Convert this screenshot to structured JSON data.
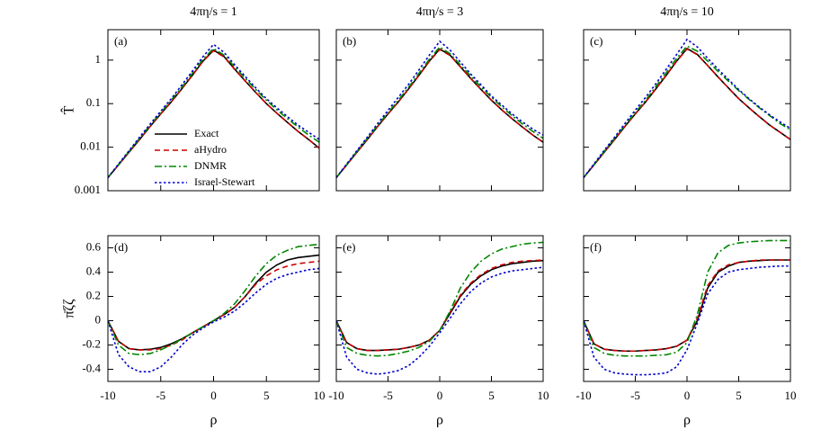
{
  "chart_data": [
    {
      "type": "line",
      "title": "4πη/s = 1",
      "panel_label": "(a)",
      "ylabel": "T̂",
      "log_y": true,
      "legend": "center-left",
      "show_xtick_labels": false,
      "show_ytick_labels": true,
      "x": [
        -10,
        -9,
        -8,
        -7,
        -6,
        -5,
        -4,
        -3,
        -2,
        -1,
        0,
        1,
        2,
        3,
        4,
        5,
        6,
        7,
        8,
        9,
        10
      ],
      "xlim": [
        -10,
        10
      ],
      "xticks": [
        -10,
        -5,
        0,
        5,
        10
      ],
      "ylim": [
        0.001,
        5
      ],
      "yticks": [
        0.001,
        0.01,
        0.1,
        1
      ],
      "series": [
        {
          "name": "Exact",
          "color": "#000000",
          "dash": "solid",
          "values": [
            0.002,
            0.0039,
            0.0077,
            0.015,
            0.03,
            0.058,
            0.11,
            0.22,
            0.45,
            0.95,
            1.7,
            1.2,
            0.62,
            0.33,
            0.18,
            0.1,
            0.06,
            0.037,
            0.023,
            0.015,
            0.0095
          ]
        },
        {
          "name": "aHydro",
          "color": "#cc0000",
          "dash": "dashed",
          "values": [
            0.002,
            0.0039,
            0.0077,
            0.015,
            0.03,
            0.058,
            0.11,
            0.22,
            0.45,
            0.94,
            1.65,
            1.18,
            0.61,
            0.33,
            0.18,
            0.1,
            0.06,
            0.037,
            0.023,
            0.015,
            0.0095
          ]
        },
        {
          "name": "DNMR",
          "color": "#008800",
          "dash": "dashdot",
          "values": [
            0.002,
            0.004,
            0.008,
            0.016,
            0.032,
            0.062,
            0.12,
            0.24,
            0.5,
            1.05,
            1.85,
            1.3,
            0.7,
            0.38,
            0.21,
            0.12,
            0.072,
            0.045,
            0.029,
            0.019,
            0.013
          ]
        },
        {
          "name": "Israel-Stewart",
          "color": "#0000cc",
          "dash": "dotted",
          "values": [
            0.002,
            0.0041,
            0.0083,
            0.017,
            0.034,
            0.067,
            0.13,
            0.27,
            0.56,
            1.2,
            2.3,
            1.5,
            0.78,
            0.42,
            0.23,
            0.13,
            0.08,
            0.05,
            0.032,
            0.022,
            0.015
          ]
        }
      ]
    },
    {
      "type": "line",
      "title": "4πη/s = 3",
      "panel_label": "(b)",
      "log_y": true,
      "show_xtick_labels": false,
      "show_ytick_labels": false,
      "x": [
        -10,
        -9,
        -8,
        -7,
        -6,
        -5,
        -4,
        -3,
        -2,
        -1,
        0,
        1,
        2,
        3,
        4,
        5,
        6,
        7,
        8,
        9,
        10
      ],
      "xlim": [
        -10,
        10
      ],
      "xticks": [
        -10,
        -5,
        0,
        5,
        10
      ],
      "ylim": [
        0.001,
        5
      ],
      "yticks": [
        0.001,
        0.01,
        0.1,
        1
      ],
      "series": [
        {
          "name": "Exact",
          "color": "#000000",
          "dash": "solid",
          "values": [
            0.002,
            0.0039,
            0.0077,
            0.015,
            0.03,
            0.058,
            0.11,
            0.22,
            0.45,
            0.95,
            1.8,
            1.3,
            0.7,
            0.38,
            0.21,
            0.12,
            0.072,
            0.045,
            0.029,
            0.019,
            0.013
          ]
        },
        {
          "name": "aHydro",
          "color": "#cc0000",
          "dash": "dashed",
          "values": [
            0.002,
            0.0039,
            0.0077,
            0.015,
            0.03,
            0.058,
            0.11,
            0.22,
            0.45,
            0.94,
            1.75,
            1.28,
            0.7,
            0.38,
            0.21,
            0.12,
            0.072,
            0.045,
            0.029,
            0.019,
            0.013
          ]
        },
        {
          "name": "DNMR",
          "color": "#008800",
          "dash": "dashdot",
          "values": [
            0.002,
            0.004,
            0.008,
            0.016,
            0.032,
            0.062,
            0.12,
            0.24,
            0.5,
            1.05,
            2.0,
            1.4,
            0.78,
            0.43,
            0.24,
            0.14,
            0.085,
            0.053,
            0.034,
            0.023,
            0.016
          ]
        },
        {
          "name": "Israel-Stewart",
          "color": "#0000cc",
          "dash": "dotted",
          "values": [
            0.002,
            0.0041,
            0.0084,
            0.017,
            0.035,
            0.07,
            0.14,
            0.28,
            0.6,
            1.3,
            2.7,
            1.7,
            0.9,
            0.48,
            0.27,
            0.15,
            0.093,
            0.058,
            0.038,
            0.026,
            0.019
          ]
        }
      ]
    },
    {
      "type": "line",
      "title": "4πη/s = 10",
      "panel_label": "(c)",
      "log_y": true,
      "show_xtick_labels": false,
      "show_ytick_labels": false,
      "x": [
        -10,
        -9,
        -8,
        -7,
        -6,
        -5,
        -4,
        -3,
        -2,
        -1,
        0,
        1,
        2,
        3,
        4,
        5,
        6,
        7,
        8,
        9,
        10
      ],
      "xlim": [
        -10,
        10
      ],
      "xticks": [
        -10,
        -5,
        0,
        5,
        10
      ],
      "ylim": [
        0.001,
        5
      ],
      "yticks": [
        0.001,
        0.01,
        0.1,
        1
      ],
      "series": [
        {
          "name": "Exact",
          "color": "#000000",
          "dash": "solid",
          "values": [
            0.002,
            0.0039,
            0.0077,
            0.015,
            0.03,
            0.058,
            0.11,
            0.22,
            0.45,
            0.95,
            1.85,
            1.35,
            0.75,
            0.41,
            0.23,
            0.13,
            0.08,
            0.05,
            0.032,
            0.022,
            0.015
          ]
        },
        {
          "name": "aHydro",
          "color": "#cc0000",
          "dash": "dashed",
          "values": [
            0.002,
            0.0039,
            0.0077,
            0.015,
            0.03,
            0.058,
            0.11,
            0.22,
            0.45,
            0.94,
            1.8,
            1.33,
            0.75,
            0.41,
            0.23,
            0.13,
            0.08,
            0.05,
            0.032,
            0.022,
            0.015
          ]
        },
        {
          "name": "DNMR",
          "color": "#008800",
          "dash": "dashdot",
          "values": [
            0.002,
            0.004,
            0.008,
            0.016,
            0.032,
            0.063,
            0.12,
            0.25,
            0.52,
            1.1,
            2.1,
            1.6,
            0.95,
            0.55,
            0.33,
            0.2,
            0.125,
            0.08,
            0.053,
            0.035,
            0.025
          ]
        },
        {
          "name": "Israel-Stewart",
          "color": "#0000cc",
          "dash": "dotted",
          "values": [
            0.002,
            0.0041,
            0.0085,
            0.017,
            0.035,
            0.071,
            0.14,
            0.29,
            0.62,
            1.35,
            3.0,
            2.0,
            1.1,
            0.62,
            0.36,
            0.21,
            0.13,
            0.083,
            0.055,
            0.038,
            0.027
          ]
        }
      ]
    },
    {
      "type": "line",
      "panel_label": "(d)",
      "xlabel": "ρ",
      "ylabel": "π̄ζζ",
      "log_y": false,
      "show_xtick_labels": true,
      "show_ytick_labels": true,
      "x": [
        -10,
        -9,
        -8,
        -7,
        -6,
        -5,
        -4,
        -3,
        -2,
        -1,
        0,
        1,
        2,
        3,
        4,
        5,
        6,
        7,
        8,
        9,
        10
      ],
      "xlim": [
        -10,
        10
      ],
      "xticks": [
        -10,
        -5,
        0,
        5,
        10
      ],
      "ylim": [
        -0.5,
        0.7
      ],
      "yticks": [
        -0.4,
        -0.2,
        0,
        0.2,
        0.4,
        0.6
      ],
      "series": [
        {
          "name": "Exact",
          "color": "#000000",
          "dash": "solid",
          "values": [
            0,
            -0.17,
            -0.23,
            -0.24,
            -0.235,
            -0.22,
            -0.19,
            -0.15,
            -0.1,
            -0.05,
            0,
            0.05,
            0.11,
            0.2,
            0.31,
            0.4,
            0.46,
            0.5,
            0.52,
            0.53,
            0.54
          ]
        },
        {
          "name": "aHydro",
          "color": "#cc0000",
          "dash": "dashed",
          "values": [
            0,
            -0.17,
            -0.23,
            -0.24,
            -0.24,
            -0.23,
            -0.2,
            -0.16,
            -0.1,
            -0.05,
            0,
            0.05,
            0.11,
            0.2,
            0.3,
            0.37,
            0.42,
            0.45,
            0.47,
            0.48,
            0.49
          ]
        },
        {
          "name": "DNMR",
          "color": "#008800",
          "dash": "dashdot",
          "values": [
            0,
            -0.2,
            -0.27,
            -0.28,
            -0.27,
            -0.24,
            -0.2,
            -0.15,
            -0.1,
            -0.05,
            0,
            0.06,
            0.14,
            0.25,
            0.37,
            0.47,
            0.54,
            0.58,
            0.61,
            0.62,
            0.63
          ]
        },
        {
          "name": "Israel-Stewart",
          "color": "#0000cc",
          "dash": "dotted",
          "values": [
            0,
            -0.28,
            -0.38,
            -0.42,
            -0.42,
            -0.38,
            -0.3,
            -0.2,
            -0.12,
            -0.06,
            -0.01,
            0.03,
            0.08,
            0.15,
            0.23,
            0.3,
            0.35,
            0.38,
            0.4,
            0.42,
            0.43
          ]
        }
      ]
    },
    {
      "type": "line",
      "panel_label": "(e)",
      "xlabel": "ρ",
      "log_y": false,
      "show_xtick_labels": true,
      "show_ytick_labels": false,
      "x": [
        -10,
        -9,
        -8,
        -7,
        -6,
        -5,
        -4,
        -3,
        -2,
        -1,
        0,
        1,
        2,
        3,
        4,
        5,
        6,
        7,
        8,
        9,
        10
      ],
      "xlim": [
        -10,
        10
      ],
      "xticks": [
        -10,
        -5,
        0,
        5,
        10
      ],
      "ylim": [
        -0.5,
        0.7
      ],
      "yticks": [
        -0.4,
        -0.2,
        0,
        0.2,
        0.4,
        0.6
      ],
      "series": [
        {
          "name": "Exact",
          "color": "#000000",
          "dash": "solid",
          "values": [
            0,
            -0.18,
            -0.23,
            -0.245,
            -0.245,
            -0.24,
            -0.235,
            -0.22,
            -0.2,
            -0.16,
            -0.08,
            0.06,
            0.2,
            0.3,
            0.37,
            0.42,
            0.45,
            0.47,
            0.48,
            0.49,
            0.495
          ]
        },
        {
          "name": "aHydro",
          "color": "#cc0000",
          "dash": "dashed",
          "values": [
            0,
            -0.18,
            -0.23,
            -0.245,
            -0.245,
            -0.24,
            -0.235,
            -0.22,
            -0.2,
            -0.16,
            -0.08,
            0.07,
            0.21,
            0.31,
            0.38,
            0.43,
            0.46,
            0.48,
            0.49,
            0.495,
            0.5
          ]
        },
        {
          "name": "DNMR",
          "color": "#008800",
          "dash": "dashdot",
          "values": [
            0,
            -0.22,
            -0.27,
            -0.285,
            -0.29,
            -0.285,
            -0.27,
            -0.25,
            -0.22,
            -0.17,
            -0.08,
            0.08,
            0.27,
            0.4,
            0.49,
            0.55,
            0.59,
            0.61,
            0.63,
            0.64,
            0.645
          ]
        },
        {
          "name": "Israel-Stewart",
          "color": "#0000cc",
          "dash": "dotted",
          "values": [
            0,
            -0.3,
            -0.4,
            -0.43,
            -0.44,
            -0.43,
            -0.41,
            -0.37,
            -0.3,
            -0.21,
            -0.1,
            0.02,
            0.14,
            0.24,
            0.31,
            0.36,
            0.39,
            0.41,
            0.42,
            0.43,
            0.44
          ]
        }
      ]
    },
    {
      "type": "line",
      "panel_label": "(f)",
      "xlabel": "ρ",
      "log_y": false,
      "show_xtick_labels": true,
      "show_ytick_labels": false,
      "x": [
        -10,
        -9,
        -8,
        -7,
        -6,
        -5,
        -4,
        -3,
        -2,
        -1,
        0,
        1,
        2,
        3,
        4,
        5,
        6,
        7,
        8,
        9,
        10
      ],
      "xlim": [
        -10,
        10
      ],
      "xticks": [
        -10,
        -5,
        0,
        5,
        10
      ],
      "ylim": [
        -0.5,
        0.7
      ],
      "yticks": [
        -0.4,
        -0.2,
        0,
        0.2,
        0.4,
        0.6
      ],
      "series": [
        {
          "name": "Exact",
          "color": "#000000",
          "dash": "solid",
          "values": [
            0,
            -0.19,
            -0.235,
            -0.245,
            -0.25,
            -0.25,
            -0.245,
            -0.24,
            -0.23,
            -0.21,
            -0.16,
            0.0,
            0.27,
            0.4,
            0.45,
            0.48,
            0.49,
            0.495,
            0.5,
            0.5,
            0.5
          ]
        },
        {
          "name": "aHydro",
          "color": "#cc0000",
          "dash": "dashed",
          "values": [
            0,
            -0.19,
            -0.235,
            -0.245,
            -0.25,
            -0.25,
            -0.245,
            -0.24,
            -0.23,
            -0.21,
            -0.16,
            0.02,
            0.29,
            0.41,
            0.46,
            0.48,
            0.49,
            0.5,
            0.5,
            0.5,
            0.5
          ]
        },
        {
          "name": "DNMR",
          "color": "#008800",
          "dash": "dashdot",
          "values": [
            0,
            -0.22,
            -0.27,
            -0.285,
            -0.29,
            -0.29,
            -0.29,
            -0.285,
            -0.28,
            -0.26,
            -0.18,
            0.05,
            0.4,
            0.56,
            0.62,
            0.64,
            0.65,
            0.655,
            0.66,
            0.66,
            0.66
          ]
        },
        {
          "name": "Israel-Stewart",
          "color": "#0000cc",
          "dash": "dotted",
          "values": [
            0,
            -0.3,
            -0.4,
            -0.43,
            -0.44,
            -0.445,
            -0.445,
            -0.44,
            -0.43,
            -0.38,
            -0.24,
            -0.02,
            0.22,
            0.34,
            0.4,
            0.42,
            0.43,
            0.44,
            0.445,
            0.45,
            0.45
          ]
        }
      ]
    }
  ]
}
